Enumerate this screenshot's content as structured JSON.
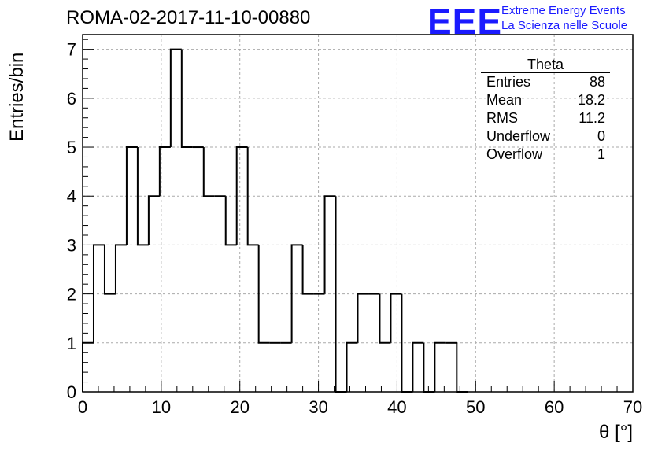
{
  "chart_data": {
    "type": "bar",
    "title": "ROMA-02-2017-11-10-00880",
    "xlabel": "θ [°]",
    "ylabel": "Entries/bin",
    "xlim": [
      0,
      70
    ],
    "ylim": [
      0,
      7.3
    ],
    "x_ticks": [
      "0",
      "10",
      "20",
      "30",
      "40",
      "50",
      "60",
      "70"
    ],
    "y_ticks": [
      "0",
      "1",
      "2",
      "3",
      "4",
      "5",
      "6",
      "7"
    ],
    "grid": true,
    "bin_edges": [
      0,
      1.4,
      2.8,
      4.2,
      5.6,
      7.0,
      8.4,
      9.8,
      11.2,
      12.6,
      14.0,
      15.4,
      16.8,
      18.2,
      19.6,
      21.0,
      22.4,
      23.8,
      25.2,
      26.6,
      28.0,
      29.4,
      30.8,
      32.2,
      33.6,
      35.0,
      36.4,
      37.8,
      39.2,
      40.6,
      42.0,
      43.4,
      44.8,
      46.2,
      47.6,
      49.0
    ],
    "values": [
      1,
      3,
      2,
      3,
      5,
      3,
      4,
      5,
      7,
      5,
      5,
      4,
      4,
      3,
      5,
      3,
      1,
      1,
      1,
      3,
      2,
      2,
      4,
      0,
      1,
      2,
      2,
      1,
      2,
      0,
      1,
      0,
      1,
      1,
      0
    ]
  },
  "header": {
    "logo_mark": "EEE",
    "logo_line1": "Extreme Energy Events",
    "logo_line2": "La Scienza nelle Scuole"
  },
  "stats": {
    "name": "Theta",
    "rows": [
      {
        "label": "Entries",
        "value": "88"
      },
      {
        "label": "Mean",
        "value": "18.2"
      },
      {
        "label": "RMS",
        "value": "11.2"
      },
      {
        "label": "Underflow",
        "value": "0"
      },
      {
        "label": "Overflow",
        "value": "1"
      }
    ]
  },
  "colors": {
    "brand": "#1a1aff",
    "line": "#000000",
    "grid": "#aaaaaa"
  }
}
